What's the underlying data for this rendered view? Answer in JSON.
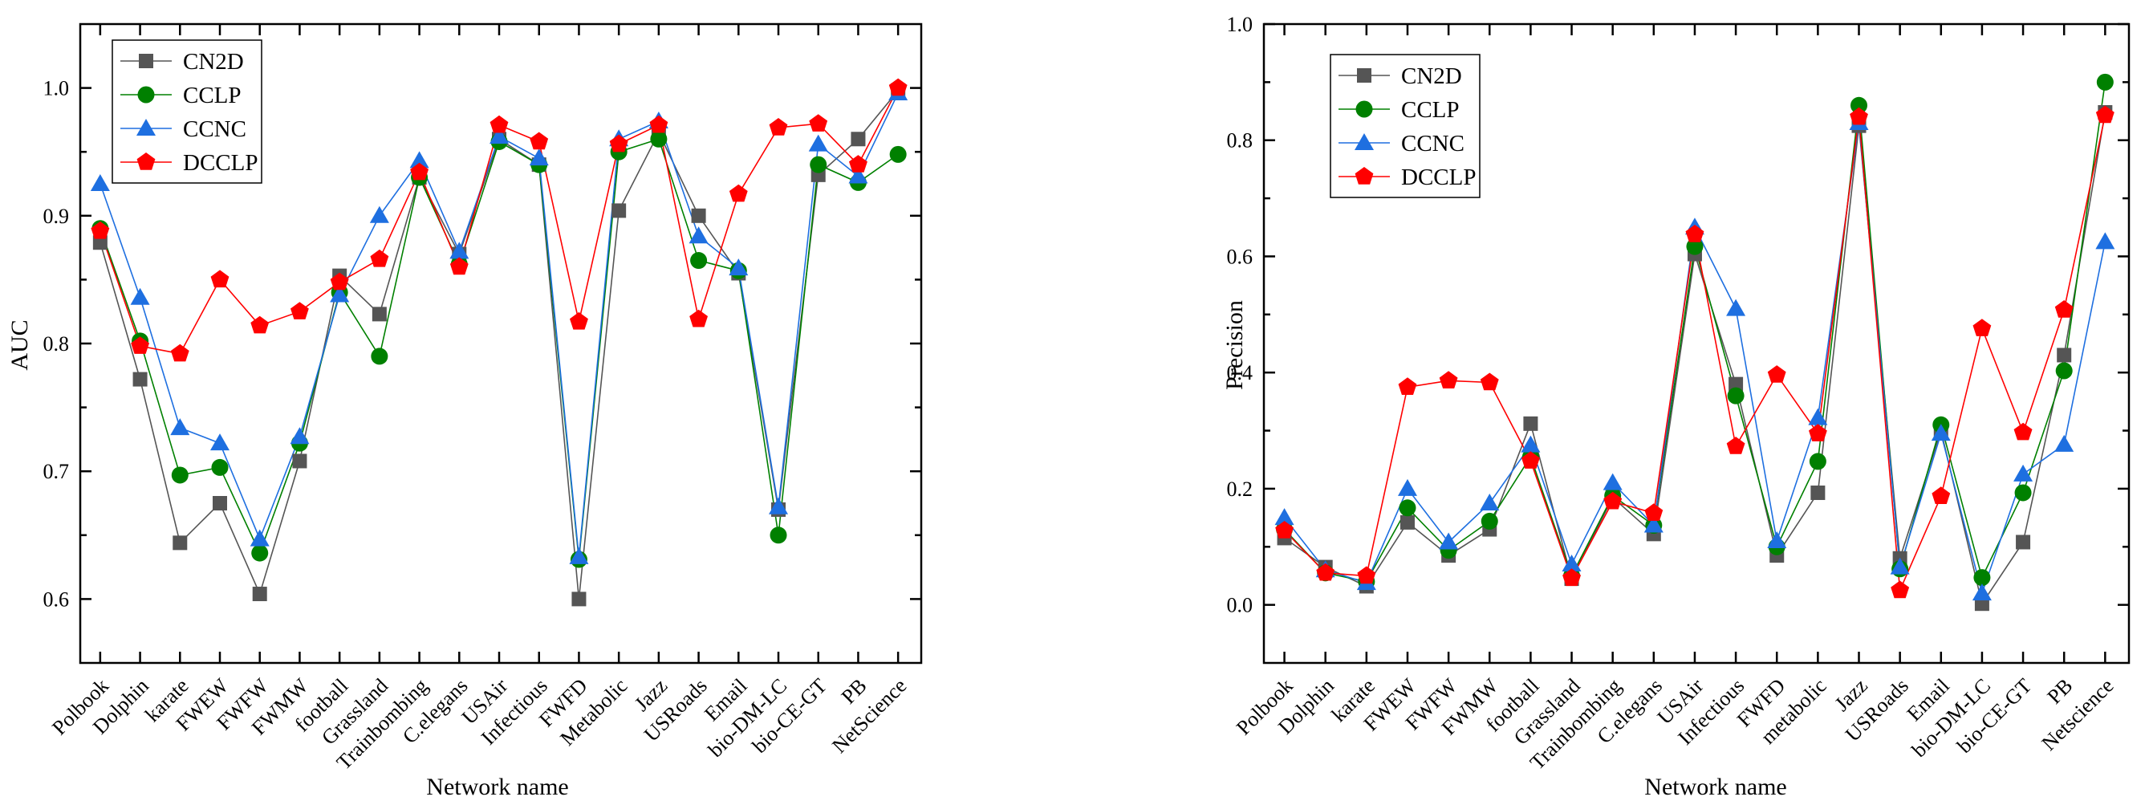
{
  "chart_data": [
    {
      "type": "line",
      "id": "auc",
      "xlabel": "Network name",
      "ylabel": "AUC",
      "ylim": [
        0.55,
        1.05
      ],
      "yticks": [
        "0.6",
        "0.7",
        "0.8",
        "0.9",
        "1.0"
      ],
      "legend_position": "top-left",
      "categories": [
        "Polbook",
        "Dolphin",
        "karate",
        "FWEW",
        "FWFW",
        "FWMW",
        "football",
        "Grassland",
        "Trainbombing",
        "C.elegans",
        "USAir",
        "Infectious",
        "FWFD",
        "Metabolic",
        "Jazz",
        "USRoads",
        "Email",
        "bio-DM-LC",
        "bio-CE-GT",
        "PB",
        "NetScience"
      ],
      "series": [
        {
          "name": "CN2D",
          "color": "#555555",
          "marker": "square",
          "values": [
            0.879,
            0.772,
            0.644,
            0.675,
            0.604,
            0.708,
            0.853,
            0.823,
            0.93,
            0.87,
            0.96,
            0.94,
            0.6,
            0.904,
            0.965,
            0.9,
            0.855,
            0.67,
            0.932,
            0.96,
            0.998
          ]
        },
        {
          "name": "CCLP",
          "color": "#008000",
          "marker": "circle",
          "values": [
            0.89,
            0.802,
            0.697,
            0.703,
            0.636,
            0.722,
            0.84,
            0.79,
            0.93,
            0.862,
            0.958,
            0.94,
            0.631,
            0.95,
            0.96,
            0.865,
            0.857,
            0.65,
            0.94,
            0.926,
            0.948
          ]
        },
        {
          "name": "CCNC",
          "color": "#1E6FE0",
          "marker": "triangle",
          "values": [
            0.925,
            0.836,
            0.734,
            0.722,
            0.647,
            0.727,
            0.838,
            0.9,
            0.943,
            0.872,
            0.962,
            0.945,
            0.633,
            0.96,
            0.974,
            0.884,
            0.859,
            0.672,
            0.956,
            0.931,
            0.996
          ]
        },
        {
          "name": "DCCLP",
          "color": "#FF0000",
          "marker": "pentagon",
          "values": [
            0.888,
            0.798,
            0.792,
            0.85,
            0.814,
            0.825,
            0.848,
            0.866,
            0.934,
            0.86,
            0.971,
            0.958,
            0.817,
            0.956,
            0.971,
            0.819,
            0.917,
            0.969,
            0.972,
            0.94,
            1.0
          ]
        }
      ]
    },
    {
      "type": "line",
      "id": "precision",
      "xlabel": "Network name",
      "ylabel": "Precision",
      "ylim": [
        -0.1,
        1.0
      ],
      "yticks": [
        "0.0",
        "0.2",
        "0.4",
        "0.6",
        "0.8",
        "1.0"
      ],
      "legend_position": "top-left",
      "categories": [
        "Polbook",
        "Dolphin",
        "karate",
        "FWEW",
        "FWFW",
        "FWMW",
        "football",
        "Grassland",
        "Trainbombing",
        "C.elegans",
        "USAir",
        "Infectious",
        "FWFD",
        "metabolic",
        "Jazz",
        "USRoads",
        "Email",
        "bio-DM-LC",
        "bio-CE-GT",
        "PB",
        "Netscience"
      ],
      "series": [
        {
          "name": "CN2D",
          "color": "#555555",
          "marker": "square",
          "values": [
            0.115,
            0.065,
            0.032,
            0.142,
            0.085,
            0.13,
            0.312,
            0.045,
            0.185,
            0.122,
            0.604,
            0.38,
            0.085,
            0.193,
            0.825,
            0.08,
            0.3,
            0.002,
            0.108,
            0.43,
            0.848
          ]
        },
        {
          "name": "CCLP",
          "color": "#008000",
          "marker": "circle",
          "values": [
            0.13,
            0.055,
            0.04,
            0.167,
            0.094,
            0.144,
            0.255,
            0.05,
            0.188,
            0.137,
            0.617,
            0.36,
            0.1,
            0.247,
            0.86,
            0.062,
            0.31,
            0.047,
            0.193,
            0.403,
            0.9
          ]
        },
        {
          "name": "CCNC",
          "color": "#1E6FE0",
          "marker": "triangle",
          "values": [
            0.15,
            0.06,
            0.038,
            0.2,
            0.108,
            0.175,
            0.275,
            0.07,
            0.21,
            0.137,
            0.65,
            0.51,
            0.11,
            0.322,
            0.83,
            0.065,
            0.295,
            0.02,
            0.225,
            0.276,
            0.625
          ]
        },
        {
          "name": "DCCLP",
          "color": "#FF0000",
          "marker": "pentagon",
          "values": [
            0.128,
            0.055,
            0.05,
            0.375,
            0.386,
            0.383,
            0.248,
            0.046,
            0.178,
            0.158,
            0.638,
            0.273,
            0.396,
            0.295,
            0.84,
            0.025,
            0.187,
            0.476,
            0.297,
            0.508,
            0.843
          ]
        }
      ]
    }
  ]
}
